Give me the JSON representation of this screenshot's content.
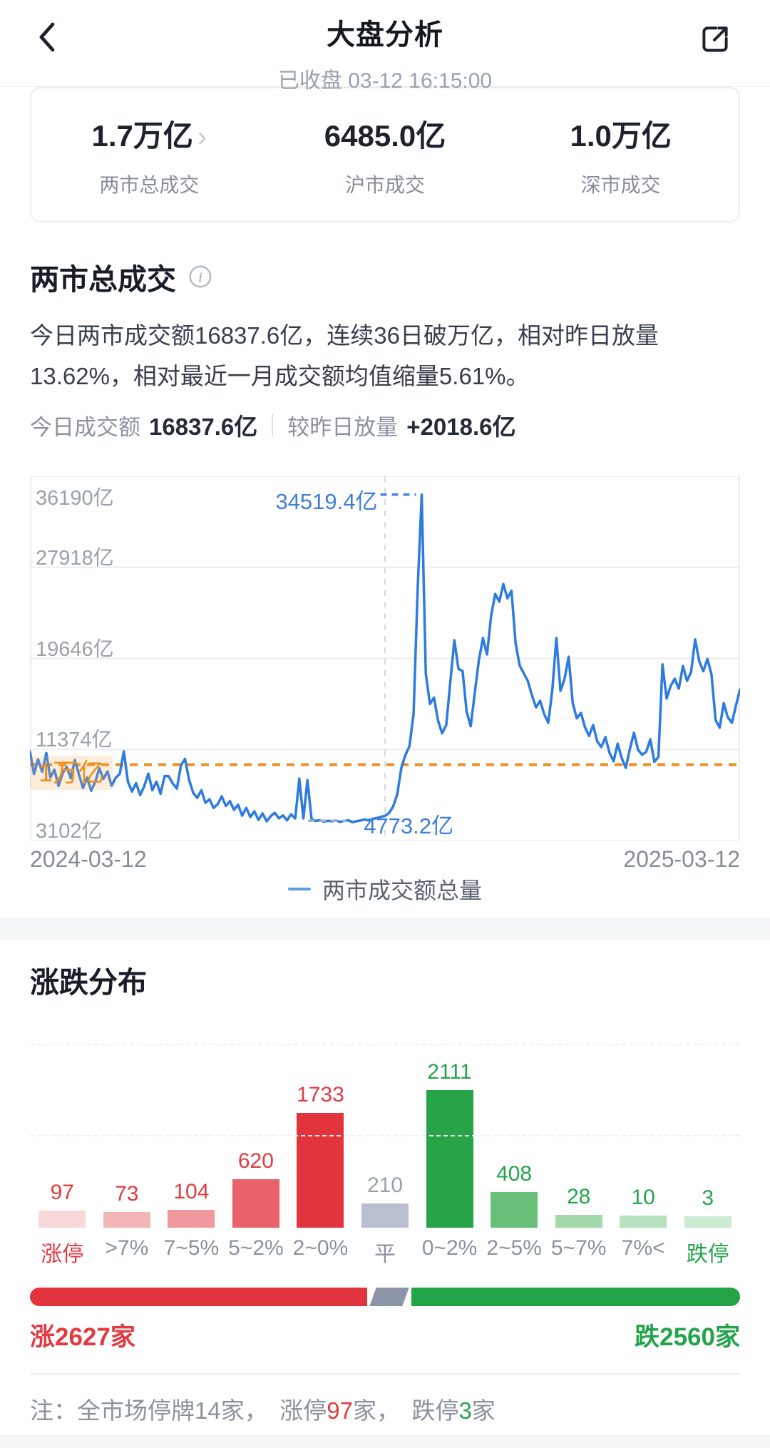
{
  "header": {
    "title": "大盘分析",
    "status_line": "已收盘 03-12 16:15:00"
  },
  "summary_card": {
    "items": [
      {
        "value": "1.7万亿",
        "label": "两市总成交",
        "chevron": "›"
      },
      {
        "value": "6485.0亿",
        "label": "沪市成交"
      },
      {
        "value": "1.0万亿",
        "label": "深市成交"
      }
    ]
  },
  "turnover_section": {
    "heading": "两市总成交",
    "description": "今日两市成交额16837.6亿，连续36日破万亿，相对昨日放量13.62%，相对最近一月成交额均值缩量5.61%。",
    "today_label": "今日成交额",
    "today_value": "16837.6亿",
    "change_label": "较昨日放量",
    "change_value": "+2018.6亿"
  },
  "distribution": {
    "heading": "涨跌分布",
    "progress": {
      "up_count": 2627,
      "down_count": 2560,
      "up_label": "涨2627家",
      "down_label": "跌2560家"
    },
    "note_parts": [
      {
        "text": "注：全市场停牌14家，　",
        "color": "gray"
      },
      {
        "text": "涨停",
        "color": "gray"
      },
      {
        "text": "97",
        "color": "red"
      },
      {
        "text": "家，　",
        "color": "gray"
      },
      {
        "text": "跌停",
        "color": "gray"
      },
      {
        "text": "3",
        "color": "green"
      },
      {
        "text": "家",
        "color": "gray"
      }
    ]
  },
  "chart_data": [
    {
      "type": "line",
      "title": "两市成交额总量",
      "legend": [
        "两市成交额总量"
      ],
      "x_labels": [
        "2024-03-12",
        "2025-03-12"
      ],
      "ylim": [
        3102,
        36190
      ],
      "y_ticks": [
        {
          "value": 36190,
          "label": "36190亿"
        },
        {
          "value": 27918,
          "label": "27918亿"
        },
        {
          "value": 19646,
          "label": "19646亿"
        },
        {
          "value": 11374,
          "label": "11374亿"
        },
        {
          "value": 3102,
          "label": "3102亿"
        }
      ],
      "threshold": {
        "value": 10000,
        "label": "1万亿"
      },
      "max_annotation": "34519.4亿",
      "min_annotation": "4773.2亿",
      "line_color": "#2d7be0",
      "series": [
        {
          "name": "两市成交额总量",
          "values": [
            11187,
            9150,
            10480,
            9350,
            11060,
            8830,
            9540,
            8070,
            9210,
            9800,
            8760,
            10420,
            9120,
            7880,
            8820,
            7630,
            8420,
            9660,
            8700,
            9370,
            8070,
            8800,
            9150,
            11200,
            8450,
            7560,
            8310,
            7240,
            8020,
            9190,
            7680,
            8460,
            7350,
            8960,
            8940,
            8280,
            7820,
            9940,
            10520,
            8620,
            7430,
            6980,
            7680,
            6530,
            6850,
            6070,
            6400,
            7120,
            6240,
            6680,
            5890,
            6360,
            5360,
            6070,
            5240,
            5760,
            4980,
            5560,
            4850,
            5310,
            5620,
            5120,
            5390,
            4940,
            5480,
            5110,
            8730,
            5110,
            8600,
            5050,
            4880,
            4950,
            4820,
            4900,
            4850,
            4920,
            4800,
            4890,
            4950,
            4773.2,
            4860,
            4930,
            5010,
            4940,
            5080,
            5150,
            5260,
            5340,
            5600,
            6200,
            7300,
            9700,
            10870,
            11660,
            14620,
            25900,
            34519.4,
            18300,
            15500,
            16100,
            14000,
            12840,
            13600,
            17500,
            21300,
            18700,
            18500,
            14800,
            13480,
            16500,
            19500,
            21500,
            20000,
            23500,
            25500,
            24800,
            26400,
            25100,
            25800,
            21000,
            19000,
            18300,
            17600,
            16300,
            15200,
            15800,
            14600,
            13800,
            16800,
            21500,
            16700,
            17800,
            19800,
            15600,
            14200,
            14700,
            13400,
            12600,
            13600,
            12100,
            11600,
            12500,
            11100,
            10300,
            11900,
            10600,
            9700,
            11400,
            12900,
            11350,
            10900,
            11150,
            12300,
            10250,
            10700,
            19100,
            16000,
            17150,
            17800,
            16900,
            18950,
            17600,
            18400,
            21370,
            19380,
            18480,
            19600,
            18200,
            14050,
            13350,
            15570,
            14300,
            13800,
            15380,
            16837.6
          ]
        }
      ]
    },
    {
      "type": "bar",
      "title": "涨跌分布",
      "categories": [
        "涨停",
        ">7%",
        "7~5%",
        "5~2%",
        "2~0%",
        "平",
        "0~2%",
        "2~5%",
        "5~7%",
        "7%<",
        "跌停"
      ],
      "values": [
        97,
        73,
        104,
        620,
        1733,
        210,
        2111,
        408,
        28,
        10,
        3
      ],
      "bar_colors": [
        "#f7d9db",
        "#f2b5b8",
        "#ef989d",
        "#e9626a",
        "#e2343d",
        "#b9bfce",
        "#27a447",
        "#67bf78",
        "#a4d8ad",
        "#b7e1bf",
        "#cdead3"
      ],
      "value_colors": [
        "#e23a40",
        "#e23a40",
        "#e23a40",
        "#e23a40",
        "#e23a40",
        "#9aa0ac",
        "#24a44a",
        "#24a44a",
        "#24a44a",
        "#24a44a",
        "#24a44a"
      ],
      "category_colors": [
        "#e23a40",
        "#8b919e",
        "#8b919e",
        "#8b919e",
        "#8b919e",
        "#8b919e",
        "#8b919e",
        "#8b919e",
        "#8b919e",
        "#8b919e",
        "#24a44a"
      ]
    }
  ]
}
